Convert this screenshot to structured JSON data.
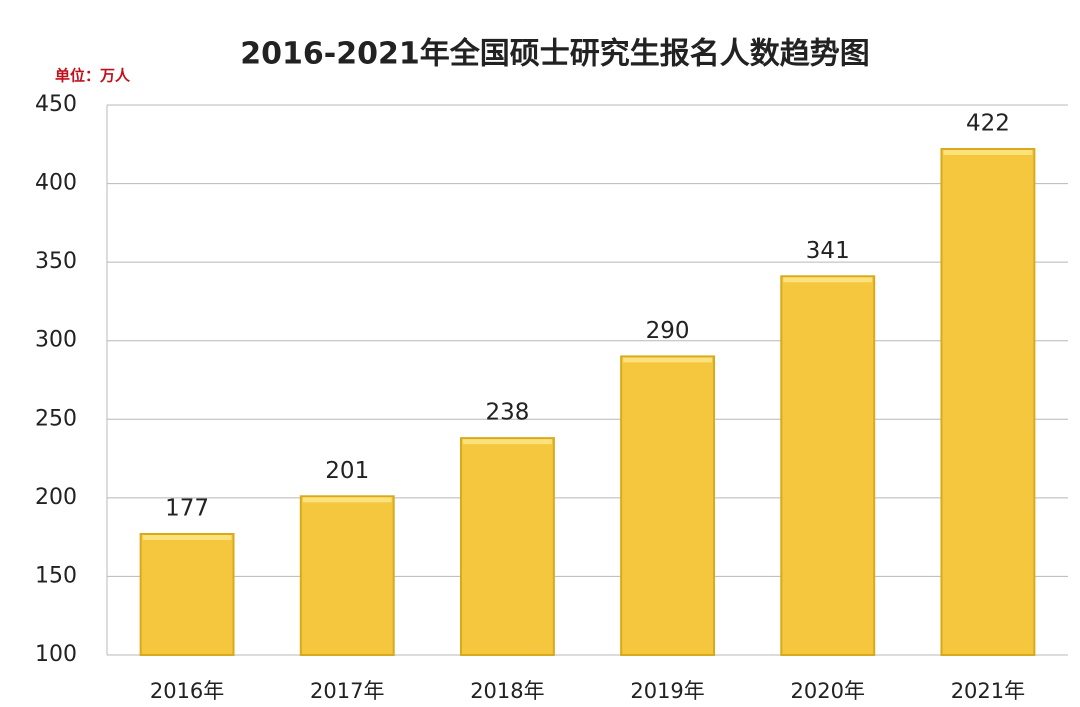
{
  "chart_data": {
    "type": "bar",
    "title": "2016-2021年全国硕士研究生报名人数趋势图",
    "subtitle": "单位：万人",
    "categories": [
      "2016年",
      "2017年",
      "2018年",
      "2019年",
      "2020年",
      "2021年"
    ],
    "values": [
      177,
      201,
      238,
      290,
      341,
      422
    ],
    "color": "#f4c73e",
    "ylim": [
      100,
      450
    ],
    "yticks": [
      100,
      150,
      200,
      250,
      300,
      350,
      400,
      450
    ],
    "grid": true
  }
}
